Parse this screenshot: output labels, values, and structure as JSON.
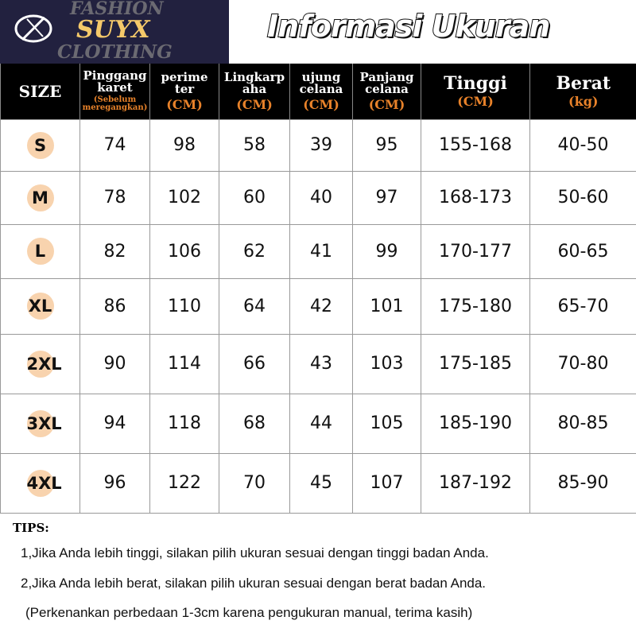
{
  "logo": {
    "bg_top": "FASHION",
    "brand": "SUYX",
    "bg_bottom": "CLOTHING"
  },
  "title": "Informasi Ukuran",
  "headers": [
    {
      "l1": "SIZE"
    },
    {
      "l1": "Pinggang",
      "l2": "karet",
      "unit": "(Sebelum meregangkan)"
    },
    {
      "l1": "perime",
      "l2": "ter",
      "unit": "(CM)"
    },
    {
      "l1": "Lingkarp",
      "l2": "aha",
      "unit": "(CM)"
    },
    {
      "l1": "ujung",
      "l2": "celana",
      "unit": "(CM)"
    },
    {
      "l1": "Panjang",
      "l2": "celana",
      "unit": "(CM)"
    },
    {
      "l1": "Tinggi",
      "unit": "(CM)"
    },
    {
      "l1": "Berat",
      "unit": "(kg)"
    }
  ],
  "rows": [
    [
      "S",
      "74",
      "98",
      "58",
      "39",
      "95",
      "155-168",
      "40-50"
    ],
    [
      "M",
      "78",
      "102",
      "60",
      "40",
      "97",
      "168-173",
      "50-60"
    ],
    [
      "L",
      "82",
      "106",
      "62",
      "41",
      "99",
      "170-177",
      "60-65"
    ],
    [
      "XL",
      "86",
      "110",
      "64",
      "42",
      "101",
      "175-180",
      "65-70"
    ],
    [
      "2XL",
      "90",
      "114",
      "66",
      "43",
      "103",
      "175-185",
      "70-80"
    ],
    [
      "3XL",
      "94",
      "118",
      "68",
      "44",
      "105",
      "185-190",
      "80-85"
    ],
    [
      "4XL",
      "96",
      "122",
      "70",
      "45",
      "107",
      "187-192",
      "85-90"
    ]
  ],
  "tips": {
    "heading": "TIPS:",
    "lines": [
      "1,Jika Anda lebih tinggi, silakan pilih ukuran sesuai dengan tinggi badan Anda.",
      "2,Jika Anda lebih berat, silakan pilih ukuran sesuai dengan berat badan Anda.",
      "(Perkenankan perbedaan 1-3cm karena pengukuran manual, terima kasih)"
    ]
  },
  "colors": {
    "header_bg": "#000000",
    "unit": "#e8822a",
    "size_badge": "#f8d3ae",
    "logo_bg": "#22213f",
    "brand": "#f5c96a"
  }
}
